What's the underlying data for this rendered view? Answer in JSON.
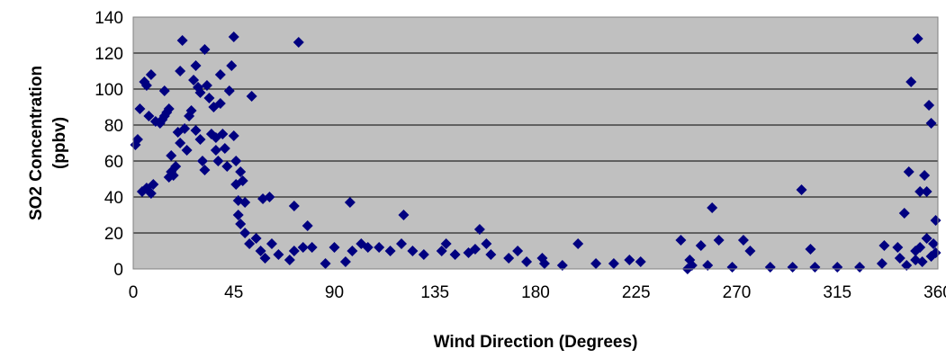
{
  "chart_data": {
    "type": "scatter",
    "title": "",
    "xlabel": "Wind Direction (Degrees)",
    "ylabel_line1": "SO2 Concentration",
    "ylabel_line2": "(ppbv)",
    "xlim": [
      0,
      360
    ],
    "ylim": [
      0,
      140
    ],
    "x_ticks": [
      0,
      45,
      90,
      135,
      180,
      225,
      270,
      315,
      360
    ],
    "y_ticks": [
      0,
      20,
      40,
      60,
      80,
      100,
      120,
      140
    ],
    "grid": "horizontal",
    "legend": "none",
    "colors": {
      "plot_background": "#c0c0c0",
      "marker": "#000080",
      "grid": "#000000"
    },
    "series": [
      {
        "values": [
          [
            1,
            69
          ],
          [
            2,
            72
          ],
          [
            3,
            89
          ],
          [
            5,
            104
          ],
          [
            6,
            102
          ],
          [
            8,
            108
          ],
          [
            7,
            85
          ],
          [
            10,
            82
          ],
          [
            4,
            43
          ],
          [
            6,
            45
          ],
          [
            8,
            42
          ],
          [
            9,
            47
          ],
          [
            12,
            81
          ],
          [
            13,
            83
          ],
          [
            14,
            99
          ],
          [
            14,
            85
          ],
          [
            15,
            87
          ],
          [
            16,
            89
          ],
          [
            17,
            63
          ],
          [
            17,
            54
          ],
          [
            16,
            51
          ],
          [
            18,
            52
          ],
          [
            19,
            57
          ],
          [
            20,
            76
          ],
          [
            21,
            70
          ],
          [
            21,
            110
          ],
          [
            22,
            127
          ],
          [
            23,
            78
          ],
          [
            24,
            66
          ],
          [
            25,
            85
          ],
          [
            26,
            88
          ],
          [
            27,
            105
          ],
          [
            28,
            113
          ],
          [
            29,
            101
          ],
          [
            30,
            98
          ],
          [
            28,
            77
          ],
          [
            30,
            72
          ],
          [
            31,
            60
          ],
          [
            32,
            55
          ],
          [
            32,
            122
          ],
          [
            33,
            102
          ],
          [
            34,
            95
          ],
          [
            35,
            75
          ],
          [
            36,
            90
          ],
          [
            37,
            73
          ],
          [
            37,
            66
          ],
          [
            38,
            60
          ],
          [
            39,
            92
          ],
          [
            39,
            108
          ],
          [
            40,
            75
          ],
          [
            41,
            67
          ],
          [
            42,
            57
          ],
          [
            43,
            99
          ],
          [
            44,
            113
          ],
          [
            45,
            129
          ],
          [
            45,
            74
          ],
          [
            46,
            60
          ],
          [
            46,
            47
          ],
          [
            47,
            38
          ],
          [
            48,
            54
          ],
          [
            49,
            49
          ],
          [
            50,
            37
          ],
          [
            53,
            96
          ],
          [
            58,
            39
          ],
          [
            61,
            40
          ],
          [
            72,
            35
          ],
          [
            74,
            126
          ],
          [
            78,
            24
          ],
          [
            97,
            37
          ],
          [
            121,
            30
          ],
          [
            155,
            22
          ],
          [
            199,
            14
          ],
          [
            245,
            16
          ],
          [
            254,
            13
          ],
          [
            259,
            34
          ],
          [
            262,
            16
          ],
          [
            273,
            16
          ],
          [
            276,
            10
          ],
          [
            299,
            44
          ],
          [
            303,
            11
          ],
          [
            345,
            31
          ],
          [
            347,
            54
          ],
          [
            348,
            104
          ],
          [
            351,
            128
          ],
          [
            352,
            43
          ],
          [
            354,
            52
          ],
          [
            355,
            43
          ],
          [
            356,
            91
          ],
          [
            357,
            81
          ],
          [
            359,
            27
          ],
          [
            355,
            17
          ],
          [
            358,
            14
          ],
          [
            352,
            12
          ],
          [
            350,
            10
          ],
          [
            342,
            12
          ],
          [
            336,
            13
          ],
          [
            343,
            6
          ],
          [
            350,
            5
          ],
          [
            353,
            4
          ],
          [
            357,
            7
          ],
          [
            359,
            9
          ],
          [
            346,
            2
          ],
          [
            335,
            3
          ],
          [
            325,
            1
          ],
          [
            315,
            1
          ],
          [
            305,
            1
          ],
          [
            295,
            1
          ],
          [
            285,
            1
          ],
          [
            268,
            1
          ],
          [
            257,
            2
          ],
          [
            250,
            2
          ],
          [
            249,
            5
          ],
          [
            248,
            0
          ],
          [
            227,
            4
          ],
          [
            222,
            5
          ],
          [
            215,
            3
          ],
          [
            207,
            3
          ],
          [
            192,
            2
          ],
          [
            184,
            3
          ],
          [
            183,
            6
          ],
          [
            176,
            4
          ],
          [
            172,
            10
          ],
          [
            168,
            6
          ],
          [
            160,
            8
          ],
          [
            158,
            14
          ],
          [
            153,
            11
          ],
          [
            150,
            9
          ],
          [
            144,
            8
          ],
          [
            140,
            14
          ],
          [
            138,
            10
          ],
          [
            130,
            8
          ],
          [
            125,
            10
          ],
          [
            120,
            14
          ],
          [
            115,
            10
          ],
          [
            110,
            12
          ],
          [
            105,
            12
          ],
          [
            102,
            14
          ],
          [
            98,
            10
          ],
          [
            95,
            4
          ],
          [
            90,
            12
          ],
          [
            86,
            3
          ],
          [
            80,
            12
          ],
          [
            76,
            12
          ],
          [
            72,
            10
          ],
          [
            70,
            5
          ],
          [
            65,
            8
          ],
          [
            62,
            14
          ],
          [
            59,
            6
          ],
          [
            57,
            10
          ],
          [
            55,
            17
          ],
          [
            52,
            14
          ],
          [
            50,
            20
          ],
          [
            48,
            25
          ],
          [
            47,
            30
          ]
        ]
      }
    ]
  }
}
